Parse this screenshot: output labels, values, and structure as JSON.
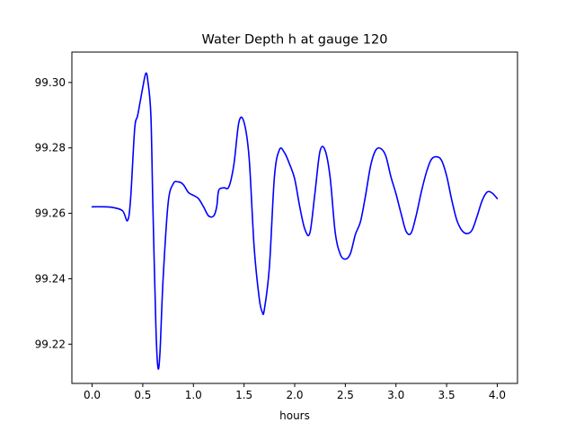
{
  "chart_data": {
    "type": "line",
    "title": "Water Depth h at gauge 120",
    "xlabel": "hours",
    "ylabel": "",
    "xlim": [
      -0.2,
      4.2
    ],
    "ylim": [
      99.208,
      99.3093
    ],
    "xticks": [
      0.0,
      0.5,
      1.0,
      1.5,
      2.0,
      2.5,
      3.0,
      3.5,
      4.0
    ],
    "xtick_labels": [
      "0.0",
      "0.5",
      "1.0",
      "1.5",
      "2.0",
      "2.5",
      "3.0",
      "3.5",
      "4.0"
    ],
    "yticks": [
      99.22,
      99.24,
      99.26,
      99.28,
      99.3
    ],
    "ytick_labels": [
      "99.22",
      "99.24",
      "99.26",
      "99.28",
      "99.30"
    ],
    "grid": false,
    "series": [
      {
        "color": "#0000ff",
        "x": [
          0.0,
          0.1,
          0.2,
          0.3,
          0.35,
          0.38,
          0.42,
          0.45,
          0.5,
          0.53,
          0.55,
          0.58,
          0.6,
          0.63,
          0.65,
          0.67,
          0.7,
          0.75,
          0.8,
          0.85,
          0.9,
          0.95,
          1.0,
          1.05,
          1.1,
          1.15,
          1.2,
          1.23,
          1.25,
          1.3,
          1.35,
          1.4,
          1.45,
          1.5,
          1.55,
          1.6,
          1.65,
          1.68,
          1.7,
          1.75,
          1.8,
          1.85,
          1.9,
          1.95,
          2.0,
          2.05,
          2.1,
          2.15,
          2.2,
          2.25,
          2.3,
          2.35,
          2.4,
          2.45,
          2.5,
          2.55,
          2.6,
          2.65,
          2.7,
          2.75,
          2.8,
          2.85,
          2.9,
          2.95,
          3.0,
          3.05,
          3.1,
          3.15,
          3.2,
          3.25,
          3.3,
          3.35,
          3.4,
          3.45,
          3.5,
          3.55,
          3.6,
          3.65,
          3.7,
          3.75,
          3.8,
          3.85,
          3.9,
          3.95,
          4.0
        ],
        "y": [
          99.262,
          99.262,
          99.2618,
          99.2608,
          99.2578,
          99.2645,
          99.2858,
          99.29,
          99.2985,
          99.3028,
          99.3005,
          99.29,
          99.262,
          99.225,
          99.2128,
          99.2175,
          99.2395,
          99.263,
          99.269,
          99.2696,
          99.2688,
          99.2664,
          99.2655,
          99.2645,
          99.262,
          99.2592,
          99.2592,
          99.262,
          99.267,
          99.2678,
          99.2681,
          99.275,
          99.288,
          99.2878,
          99.277,
          99.2495,
          99.234,
          99.2298,
          99.2305,
          99.2435,
          99.2712,
          99.2795,
          99.2785,
          99.275,
          99.2705,
          99.262,
          99.2552,
          99.254,
          99.2662,
          99.279,
          99.2793,
          99.271,
          99.2542,
          99.2475,
          99.246,
          99.2477,
          99.2536,
          99.2575,
          99.2655,
          99.2746,
          99.2793,
          99.2798,
          99.2775,
          99.2712,
          99.266,
          99.26,
          99.2545,
          99.254,
          99.2594,
          99.2665,
          99.2725,
          99.2765,
          99.2773,
          99.2762,
          99.2715,
          99.2642,
          99.258,
          99.2548,
          99.2538,
          99.2548,
          99.259,
          99.2638,
          99.2665,
          99.2662,
          99.2645
        ]
      }
    ]
  }
}
